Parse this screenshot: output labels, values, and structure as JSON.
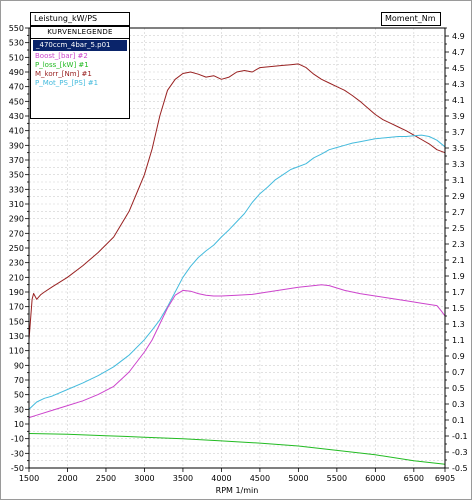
{
  "window": {
    "left_axis_label": "Leistung_kW/PS",
    "right_axis_label": "Moment_Nm",
    "legend": {
      "title": "KURVENLEGENDE",
      "selected": "_470ccm_4bar_5.p01",
      "items": [
        {
          "label": "Boost_[bar] #2",
          "color": "#cc44cc"
        },
        {
          "label": "P_loss_[kW] #1",
          "color": "#22bb22"
        },
        {
          "label": "M_korr_[Nm] #1",
          "color": "#992222"
        },
        {
          "label": "P_Mot_PS_[PS] #1",
          "color": "#44bbdd"
        }
      ]
    }
  },
  "chart_data": {
    "type": "line",
    "xlabel": "RPM   1/min",
    "x_ticks": [
      "1500",
      "2000",
      "2500",
      "3000",
      "3500",
      "4000",
      "4500",
      "5000",
      "5500",
      "6000",
      "6500",
      "6905"
    ],
    "xlim": [
      1500,
      6905
    ],
    "left_axis": {
      "ylim": [
        -50,
        550
      ],
      "ticks": [
        "-50",
        "-40",
        "-30",
        "-20",
        "-10",
        "0",
        "10",
        "20",
        "30",
        "40",
        "50",
        "60",
        "70",
        "80",
        "90",
        "100",
        "110",
        "120",
        "130",
        "140",
        "150",
        "160",
        "170",
        "180",
        "190",
        "200",
        "210",
        "220",
        "230",
        "240",
        "250",
        "260",
        "270",
        "280",
        "290",
        "300",
        "310",
        "320",
        "330",
        "340",
        "350",
        "360",
        "370",
        "380",
        "390",
        "400",
        "410",
        "420",
        "430",
        "440",
        "450",
        "460",
        "470",
        "480",
        "490",
        "500",
        "510",
        "520",
        "530",
        "540",
        "550"
      ],
      "labeled_every": 2
    },
    "right_axis": {
      "ylim": [
        -0.5,
        5.0
      ],
      "ticks": [
        "-0.5",
        "-0.4",
        "-0.3",
        "-0.2",
        "-0.1",
        "-0.0",
        "0.1",
        "0.2",
        "0.3",
        "0.4",
        "0.5",
        "0.6",
        "0.7",
        "0.8",
        "0.9",
        "1.0",
        "1.1",
        "1.2",
        "1.3",
        "1.4",
        "1.5",
        "1.6",
        "1.7",
        "1.8",
        "1.9",
        "2.0",
        "2.1",
        "2.2",
        "2.3",
        "2.4",
        "2.5",
        "2.6",
        "2.7",
        "2.8",
        "2.9",
        "3.0",
        "3.1",
        "3.2",
        "3.3",
        "3.4",
        "3.5",
        "3.6",
        "3.7",
        "3.8",
        "3.9",
        "4.0",
        "4.1",
        "4.2",
        "4.3",
        "4.4",
        "4.5",
        "4.6",
        "4.7",
        "4.8",
        "4.9",
        "5.0"
      ],
      "labeled_every": 2
    },
    "grid": true,
    "series": [
      {
        "name": "M_korr_[Nm] #1",
        "color": "#992222",
        "axis": "left",
        "x": [
          1500,
          1540,
          1560,
          1600,
          1650,
          1700,
          1800,
          2000,
          2200,
          2400,
          2600,
          2800,
          2900,
          3000,
          3100,
          3200,
          3300,
          3400,
          3500,
          3600,
          3700,
          3800,
          3900,
          4000,
          4100,
          4200,
          4300,
          4400,
          4500,
          4600,
          4700,
          4800,
          4900,
          5000,
          5100,
          5200,
          5300,
          5400,
          5500,
          5600,
          5700,
          5800,
          5900,
          6000,
          6100,
          6200,
          6300,
          6400,
          6500,
          6600,
          6700,
          6800,
          6905
        ],
        "y": [
          125,
          180,
          188,
          180,
          186,
          190,
          197,
          210,
          226,
          244,
          265,
          300,
          325,
          350,
          385,
          430,
          465,
          480,
          488,
          490,
          487,
          483,
          485,
          480,
          483,
          490,
          492,
          490,
          496,
          497,
          498,
          499,
          500,
          501,
          496,
          487,
          480,
          475,
          470,
          465,
          458,
          450,
          441,
          432,
          425,
          420,
          415,
          410,
          404,
          398,
          392,
          384,
          380
        ]
      },
      {
        "name": "P_Mot_PS_[PS] #1",
        "color": "#44bbdd",
        "axis": "left",
        "x": [
          1500,
          1600,
          1700,
          1800,
          2000,
          2200,
          2400,
          2600,
          2800,
          3000,
          3100,
          3200,
          3300,
          3400,
          3500,
          3600,
          3700,
          3800,
          3900,
          4000,
          4100,
          4200,
          4300,
          4400,
          4500,
          4600,
          4700,
          4800,
          4900,
          5000,
          5100,
          5200,
          5300,
          5400,
          5500,
          5600,
          5700,
          5800,
          5900,
          6000,
          6100,
          6200,
          6300,
          6400,
          6500,
          6600,
          6700,
          6800,
          6905
        ],
        "y": [
          30,
          40,
          45,
          48,
          57,
          66,
          76,
          88,
          104,
          125,
          138,
          152,
          170,
          190,
          210,
          225,
          237,
          246,
          254,
          265,
          275,
          286,
          297,
          312,
          324,
          333,
          343,
          350,
          357,
          361,
          365,
          373,
          378,
          384,
          387,
          390,
          393,
          395,
          397,
          399,
          400,
          401,
          402,
          402,
          403,
          404,
          402,
          397,
          388
        ]
      },
      {
        "name": "Boost_[bar] #2",
        "color": "#cc44cc",
        "axis": "right",
        "x": [
          1500,
          1600,
          1800,
          2000,
          2200,
          2400,
          2600,
          2800,
          3000,
          3100,
          3200,
          3300,
          3400,
          3500,
          3600,
          3700,
          3800,
          3900,
          4000,
          4200,
          4400,
          4600,
          4800,
          5000,
          5200,
          5300,
          5400,
          5500,
          5600,
          5800,
          6000,
          6200,
          6400,
          6600,
          6800,
          6860,
          6905
        ],
        "y": [
          0.13,
          0.16,
          0.22,
          0.28,
          0.34,
          0.42,
          0.52,
          0.7,
          0.95,
          1.1,
          1.3,
          1.5,
          1.66,
          1.72,
          1.71,
          1.68,
          1.66,
          1.65,
          1.65,
          1.66,
          1.67,
          1.7,
          1.73,
          1.76,
          1.78,
          1.79,
          1.78,
          1.75,
          1.72,
          1.68,
          1.65,
          1.62,
          1.59,
          1.56,
          1.53,
          1.46,
          1.4
        ]
      },
      {
        "name": "P_loss_[kW] #1",
        "color": "#22bb22",
        "axis": "left",
        "x": [
          1500,
          2000,
          2500,
          3000,
          3500,
          4000,
          4500,
          5000,
          5500,
          6000,
          6500,
          6905
        ],
        "y": [
          -3,
          -4,
          -6,
          -8,
          -10,
          -13,
          -16,
          -20,
          -26,
          -32,
          -40,
          -45
        ]
      }
    ]
  }
}
